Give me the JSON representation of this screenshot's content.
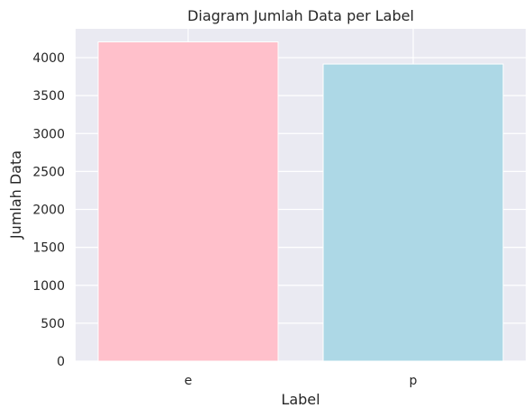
{
  "chart_data": {
    "type": "bar",
    "title": "Diagram Jumlah Data per Label",
    "xlabel": "Label",
    "ylabel": "Jumlah Data",
    "categories": [
      "e",
      "p"
    ],
    "values": [
      4208,
      3916
    ],
    "colors": [
      "#ffc0cb",
      "#add8e6"
    ],
    "ylim": [
      0,
      4380
    ],
    "yticks": [
      0,
      500,
      1000,
      1500,
      2000,
      2500,
      3000,
      3500,
      4000
    ],
    "grid": true,
    "background": "#eaeaf2",
    "grid_color": "#ffffff"
  }
}
